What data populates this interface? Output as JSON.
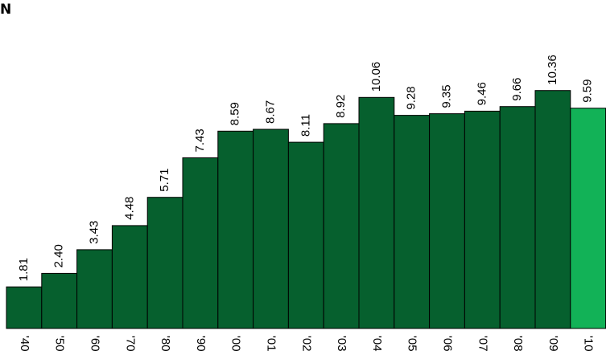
{
  "corner_label": "N",
  "chart_data": {
    "type": "bar",
    "title": "N",
    "xlabel": "",
    "ylabel": "",
    "categories": [
      "'40",
      "'50",
      "'60",
      "'70",
      "'80",
      "'90",
      "'00",
      "'01",
      "'02",
      "'03",
      "'04",
      "'05",
      "'06",
      "'07",
      "'08",
      "'09",
      "'10"
    ],
    "values": [
      1.81,
      2.4,
      3.43,
      4.48,
      5.71,
      7.43,
      8.59,
      8.67,
      8.11,
      8.92,
      10.06,
      9.28,
      9.35,
      9.46,
      9.66,
      10.36,
      9.59
    ],
    "value_labels": [
      "1.81",
      "2.40",
      "3.43",
      "4.48",
      "5.71",
      "7.43",
      "8.59",
      "8.67",
      "8.11",
      "8.92",
      "10.06",
      "9.28",
      "9.35",
      "9.46",
      "9.66",
      "10.36",
      "9.59"
    ],
    "ylim": [
      0,
      10.9
    ],
    "grid": false,
    "legend": "none",
    "colors": {
      "bar": "#06602e",
      "highlight": "#12b257",
      "outline": "#000000"
    },
    "highlight_index": 16
  }
}
